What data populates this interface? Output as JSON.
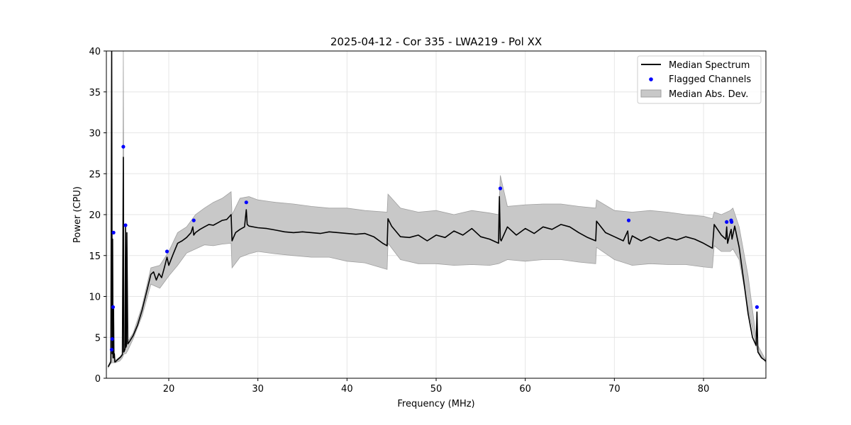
{
  "chart_data": {
    "type": "line",
    "title": "2025-04-12 - Cor 335 - LWA219 - Pol XX",
    "xlabel": "Frequency (MHz)",
    "ylabel": "Power (CPU)",
    "xlim": [
      13,
      87
    ],
    "ylim": [
      0,
      40
    ],
    "xticks": [
      20,
      30,
      40,
      50,
      60,
      70,
      80
    ],
    "yticks": [
      0,
      5,
      10,
      15,
      20,
      25,
      30,
      35,
      40
    ],
    "grid": true,
    "legend": {
      "position": "top-right",
      "entries": [
        "Median Spectrum",
        "Flagged Channels",
        "Median Abs. Dev."
      ]
    },
    "colors": {
      "median": "#000000",
      "flagged": "#0000ff",
      "band_fill": "#c8c8c8",
      "band_edge": "#a0a0a0"
    },
    "series": [
      {
        "name": "Median Spectrum",
        "x": [
          13.2,
          13.5,
          13.6,
          13.65,
          13.7,
          13.75,
          13.8,
          13.85,
          13.9,
          13.95,
          14.0,
          14.1,
          14.3,
          14.6,
          14.8,
          14.9,
          14.95,
          15.0,
          15.1,
          15.15,
          15.2,
          15.25,
          15.3,
          15.4,
          15.6,
          16.0,
          16.5,
          17.0,
          17.5,
          18.0,
          18.3,
          18.6,
          18.9,
          19.2,
          19.5,
          19.8,
          20.0,
          20.5,
          21.0,
          21.5,
          22.0,
          22.5,
          22.7,
          22.8,
          23.0,
          23.5,
          24.0,
          24.5,
          25.0,
          25.5,
          26.0,
          26.5,
          27.0,
          27.1,
          27.5,
          28.0,
          28.5,
          28.7,
          28.8,
          29.0,
          30.0,
          31.0,
          32.0,
          33.0,
          34.0,
          35.0,
          36.0,
          37.0,
          38.0,
          39.0,
          40.0,
          41.0,
          42.0,
          43.0,
          44.0,
          44.5,
          44.6,
          45.0,
          46.0,
          47.0,
          48.0,
          49.0,
          50.0,
          51.0,
          52.0,
          53.0,
          54.0,
          55.0,
          56.0,
          57.0,
          57.1,
          57.2,
          57.3,
          58.0,
          59.0,
          60.0,
          61.0,
          62.0,
          63.0,
          64.0,
          65.0,
          66.0,
          67.0,
          67.9,
          68.0,
          69.0,
          70.0,
          71.0,
          71.5,
          71.6,
          71.7,
          72.0,
          73.0,
          74.0,
          75.0,
          76.0,
          77.0,
          78.0,
          79.0,
          80.0,
          81.0,
          81.2,
          82.0,
          82.5,
          82.6,
          82.7,
          83.0,
          83.1,
          83.2,
          83.5,
          84.0,
          84.5,
          85.0,
          85.5,
          85.9,
          86.0,
          86.1,
          86.5,
          87.0
        ],
        "y": [
          1.4,
          2.0,
          40.0,
          3.0,
          17.0,
          2.5,
          8.6,
          2.5,
          3.0,
          2.0,
          2.0,
          2.1,
          2.3,
          2.6,
          2.9,
          27.0,
          3.2,
          3.3,
          3.6,
          18.7,
          3.8,
          4.0,
          17.8,
          4.2,
          4.5,
          5.2,
          6.5,
          8.3,
          10.5,
          12.7,
          13.0,
          12.0,
          12.8,
          12.3,
          13.5,
          14.8,
          13.8,
          15.2,
          16.5,
          16.8,
          17.2,
          17.8,
          18.5,
          17.5,
          17.8,
          18.2,
          18.5,
          18.8,
          18.7,
          19.0,
          19.3,
          19.4,
          20.0,
          16.8,
          17.8,
          18.2,
          18.5,
          20.6,
          18.8,
          18.6,
          18.4,
          18.3,
          18.1,
          17.9,
          17.8,
          17.9,
          17.8,
          17.7,
          17.9,
          17.8,
          17.7,
          17.6,
          17.7,
          17.3,
          16.5,
          16.2,
          19.5,
          18.6,
          17.3,
          17.2,
          17.5,
          16.8,
          17.5,
          17.2,
          18.0,
          17.5,
          18.3,
          17.3,
          17.0,
          16.5,
          22.2,
          17.0,
          16.8,
          18.5,
          17.5,
          18.3,
          17.7,
          18.5,
          18.2,
          18.8,
          18.5,
          17.8,
          17.2,
          16.8,
          19.2,
          17.8,
          17.3,
          16.8,
          18.0,
          16.5,
          16.4,
          17.4,
          16.8,
          17.3,
          16.8,
          17.2,
          16.9,
          17.3,
          17.0,
          16.5,
          15.9,
          18.8,
          17.5,
          17.0,
          18.5,
          16.5,
          17.8,
          18.2,
          17.0,
          18.6,
          16.0,
          12.0,
          7.9,
          5.0,
          4.0,
          8.1,
          3.2,
          2.5,
          2.1
        ]
      },
      {
        "name": "Median Abs. Dev.",
        "x": [
          13.2,
          13.5,
          13.6,
          13.7,
          13.8,
          14.0,
          14.5,
          14.8,
          14.9,
          15.0,
          15.2,
          15.4,
          16.0,
          17.0,
          18.0,
          19.0,
          20.0,
          21.0,
          22.0,
          23.0,
          24.0,
          25.0,
          26.0,
          27.0,
          27.1,
          28.0,
          29.0,
          30.0,
          32.0,
          34.0,
          36.0,
          38.0,
          40.0,
          42.0,
          44.5,
          44.6,
          46.0,
          48.0,
          50.0,
          52.0,
          54.0,
          56.0,
          57.0,
          57.2,
          58.0,
          60.0,
          62.0,
          64.0,
          66.0,
          67.9,
          68.0,
          70.0,
          72.0,
          74.0,
          76.0,
          78.0,
          80.0,
          81.0,
          81.2,
          82.0,
          83.0,
          83.3,
          84.0,
          85.0,
          86.0,
          87.0
        ],
        "upper": [
          1.5,
          2.2,
          28.0,
          4.0,
          3.5,
          2.2,
          2.6,
          3.0,
          40.0,
          4.0,
          4.5,
          4.5,
          5.5,
          8.8,
          13.5,
          13.8,
          15.5,
          17.8,
          18.5,
          20.0,
          20.8,
          21.5,
          22.0,
          22.8,
          20.0,
          22.0,
          22.2,
          21.8,
          21.5,
          21.3,
          21.0,
          20.8,
          20.8,
          20.5,
          20.3,
          22.5,
          20.8,
          20.3,
          20.5,
          20.0,
          20.5,
          20.2,
          20.0,
          24.8,
          21.0,
          21.2,
          21.3,
          21.3,
          21.0,
          20.8,
          21.8,
          20.5,
          20.3,
          20.5,
          20.3,
          20.0,
          19.8,
          19.5,
          20.3,
          20.0,
          20.5,
          20.8,
          18.5,
          12.5,
          4.2,
          2.2
        ],
        "lower": [
          1.3,
          1.8,
          1.9,
          1.9,
          1.9,
          1.9,
          2.1,
          2.5,
          2.8,
          3.0,
          3.0,
          3.4,
          4.8,
          7.6,
          11.5,
          11.0,
          12.5,
          13.8,
          15.3,
          15.8,
          16.3,
          16.2,
          16.4,
          16.5,
          13.5,
          14.8,
          15.2,
          15.5,
          15.2,
          15.0,
          14.8,
          14.8,
          14.3,
          14.1,
          13.3,
          16.5,
          14.5,
          14.0,
          14.0,
          13.8,
          13.9,
          13.8,
          14.0,
          14.1,
          14.5,
          14.3,
          14.5,
          14.5,
          14.2,
          14.0,
          16.0,
          14.5,
          13.8,
          14.0,
          13.9,
          13.9,
          13.6,
          13.5,
          16.2,
          15.5,
          15.5,
          15.8,
          14.5,
          8.5,
          3.5,
          1.9
        ]
      }
    ],
    "flagged_channels": {
      "name": "Flagged Channels",
      "x": [
        13.6,
        13.65,
        13.75,
        13.8,
        14.9,
        15.15,
        19.8,
        22.8,
        28.7,
        57.2,
        71.6,
        82.6,
        83.1,
        83.15,
        86.0
      ],
      "y": [
        3.5,
        4.8,
        8.7,
        17.8,
        28.3,
        18.7,
        15.5,
        19.3,
        21.5,
        23.2,
        19.3,
        19.1,
        19.3,
        19.1,
        8.7
      ]
    }
  }
}
